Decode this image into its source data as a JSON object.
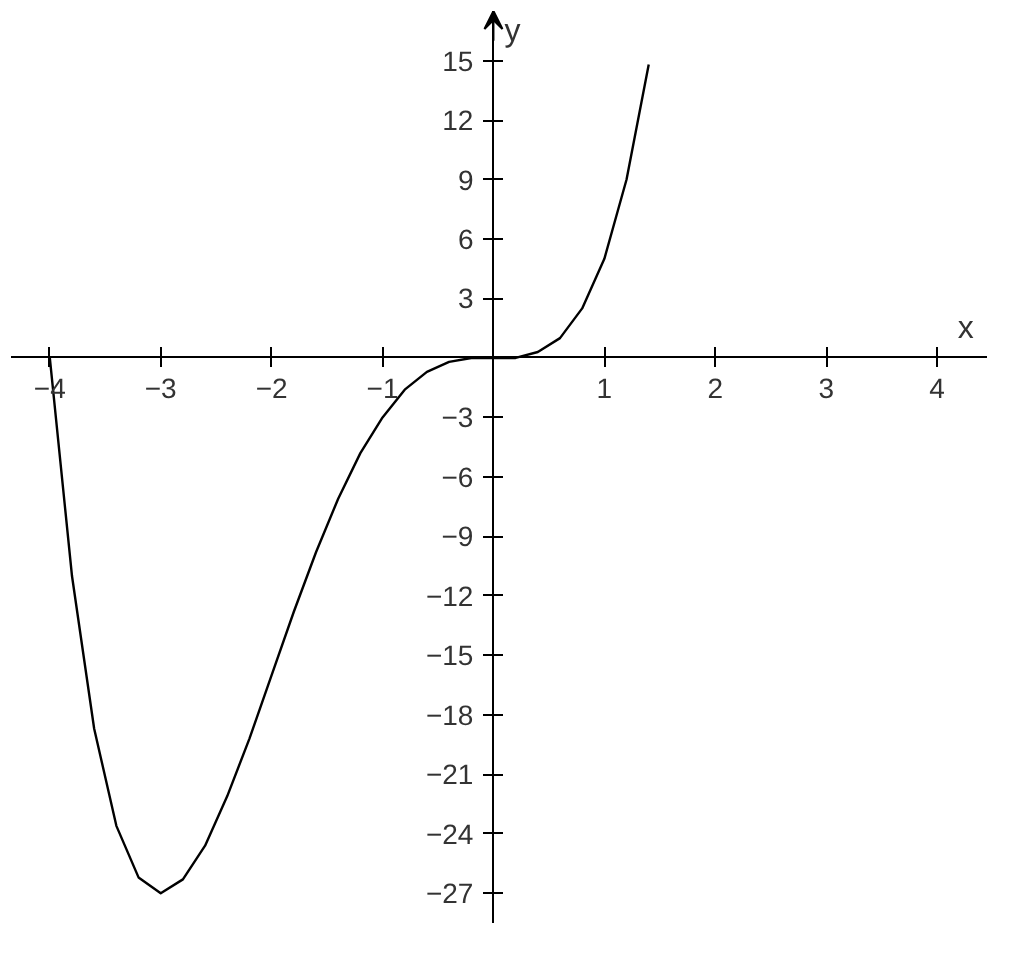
{
  "chart_data": {
    "type": "line",
    "xlabel": "x",
    "ylabel": "y",
    "x": [
      -4,
      -3.8,
      -3.6,
      -3.4,
      -3.2,
      -3,
      -2.8,
      -2.6,
      -2.4,
      -2.2,
      -2,
      -1.8,
      -1.6,
      -1.4,
      -1.2,
      -1,
      -0.8,
      -0.6,
      -0.4,
      -0.2,
      0,
      0.2,
      0.4,
      0.6,
      0.8,
      1,
      1.2,
      1.4
    ],
    "series": [
      {
        "color": "#000000",
        "values": [
          0,
          -11.0,
          -18.7,
          -23.6,
          -26.2,
          -27,
          -26.3,
          -24.6,
          -22.1,
          -19.2,
          -16,
          -12.8,
          -9.8,
          -7.1,
          -4.8,
          -3,
          -1.6,
          -0.7,
          -0.2,
          0,
          0,
          0,
          0.3,
          1.0,
          2.5,
          5,
          9.0,
          14.8
        ]
      }
    ],
    "xlim": [
      -4.35,
      4.45
    ],
    "ylim": [
      -28.5,
      17.5
    ],
    "xticks": [
      -4,
      -3,
      -2,
      -1,
      1,
      2,
      3,
      4
    ],
    "yticks": [
      -27,
      -24,
      -21,
      -18,
      -15,
      -12,
      -9,
      -6,
      -3,
      3,
      6,
      9,
      12,
      15
    ],
    "grid": false,
    "marker": "none",
    "line_style": "solid"
  }
}
